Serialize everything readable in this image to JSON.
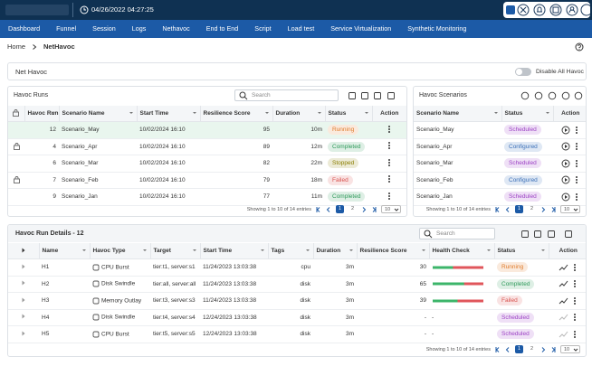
{
  "topbar": {
    "datetime": "04/26/2022 04:27:25"
  },
  "nav": [
    "Dashboard",
    "Funnel",
    "Session",
    "Logs",
    "Nethavoc",
    "End to End",
    "Script",
    "Load test",
    "Service Virtualization",
    "Synthetic Monitoring"
  ],
  "breadcrumb": [
    "Home",
    "NetHavoc"
  ],
  "net_havoc": {
    "title": "Net Havoc",
    "toggle_label": "Disable All Havoc"
  },
  "havoc_runs": {
    "title": "Havoc Runs",
    "search_placeholder": "Search",
    "columns": [
      "Havoc Run",
      "Scenario Name",
      "Start Time",
      "Resilience Score",
      "Duration",
      "Status",
      "Action"
    ],
    "rows": [
      {
        "locked": false,
        "selected": true,
        "havoc_run": "12",
        "scenario_name": "Scenario_May",
        "start_time": "10/02/2024 16:10",
        "resilience_score": "95",
        "duration": "10m",
        "status": "Running",
        "status_color": "#e07b2a"
      },
      {
        "locked": true,
        "selected": false,
        "havoc_run": "4",
        "scenario_name": "Scenario_Apr",
        "start_time": "10/02/2024 16:10",
        "resilience_score": "89",
        "duration": "12m",
        "status": "Completed",
        "status_color": "#2e9a5a"
      },
      {
        "locked": false,
        "selected": false,
        "havoc_run": "6",
        "scenario_name": "Scenario_Mar",
        "start_time": "10/02/2024 16:10",
        "resilience_score": "82",
        "duration": "22m",
        "status": "Stopped",
        "status_color": "#8a7d00"
      },
      {
        "locked": true,
        "selected": false,
        "havoc_run": "7",
        "scenario_name": "Scenario_Feb",
        "start_time": "10/02/2024 16:10",
        "resilience_score": "79",
        "duration": "18m",
        "status": "Failed",
        "status_color": "#d9534f"
      },
      {
        "locked": false,
        "selected": false,
        "havoc_run": "9",
        "scenario_name": "Scenario_Jan",
        "start_time": "10/02/2024 16:10",
        "resilience_score": "77",
        "duration": "11m",
        "status": "Completed",
        "status_color": "#2e9a5a"
      }
    ],
    "footer": "Showing 1 to 10 of 14 entries",
    "pages": [
      "1",
      "2"
    ],
    "page_size": "10"
  },
  "havoc_scenarios": {
    "title": "Havoc Scenarios",
    "columns": [
      "Scenario Name",
      "Status",
      "Action"
    ],
    "rows": [
      {
        "scenario_name": "Scenario_May",
        "status": "Scheduled",
        "status_color": "#9b3fc4"
      },
      {
        "scenario_name": "Scenario_Apr",
        "status": "Configured",
        "status_color": "#3a6fb8"
      },
      {
        "scenario_name": "Scenario_Mar",
        "status": "Scheduled",
        "status_color": "#9b3fc4"
      },
      {
        "scenario_name": "Scenario_Feb",
        "status": "Configured",
        "status_color": "#3a6fb8"
      },
      {
        "scenario_name": "Scenario_Jan",
        "status": "Scheduled",
        "status_color": "#9b3fc4"
      }
    ],
    "footer": "Showing 1 to 10 of 14 entries",
    "pages": [
      "1",
      "2"
    ],
    "page_size": "10"
  },
  "havoc_run_details": {
    "title": "Havoc Run Details - 12",
    "search_placeholder": "Search",
    "columns": [
      "Name",
      "Havoc Type",
      "Target",
      "Start Time",
      "Tags",
      "Duration",
      "Resilience Score",
      "Health Check",
      "Status",
      "Action"
    ],
    "rows": [
      {
        "name": "H1",
        "havoc_type": "CPU Burst",
        "target": "tier:t1, server:s1",
        "start_time": "11/24/2023 13:03:38",
        "tags": "cpu",
        "duration": "3m",
        "resilience_score": "30",
        "health_check": 40,
        "status": "Running",
        "status_color": "#e07b2a"
      },
      {
        "name": "H2",
        "havoc_type": "Disk Swindle",
        "target": "tier:all, server:all",
        "start_time": "11/24/2023 13:03:38",
        "tags": "disk",
        "duration": "3m",
        "resilience_score": "65",
        "health_check": 62,
        "status": "Completed",
        "status_color": "#2e9a5a"
      },
      {
        "name": "H3",
        "havoc_type": "Memory Outlay",
        "target": "tier:t3, server:s3",
        "start_time": "11/24/2023 13:03:38",
        "tags": "disk",
        "duration": "3m",
        "resilience_score": "39",
        "health_check": 49,
        "status": "Failed",
        "status_color": "#d9534f"
      },
      {
        "name": "H4",
        "havoc_type": "Disk Swindle",
        "target": "tier:t4, server:s4",
        "start_time": "12/24/2023 13:03:38",
        "tags": "disk",
        "duration": "3m",
        "resilience_score": "-",
        "health_check": "-",
        "status": "Scheduled",
        "status_color": "#9b3fc4"
      },
      {
        "name": "H5",
        "havoc_type": "CPU Burst",
        "target": "tier:t5, server:s5",
        "start_time": "12/24/2023 13:03:38",
        "tags": "disk",
        "duration": "3m",
        "resilience_score": "-",
        "health_check": "-",
        "status": "Scheduled",
        "status_color": "#9b3fc4"
      }
    ],
    "footer": "Showing 1 to 10 of 14 entries",
    "pages": [
      "1",
      "2"
    ],
    "page_size": "10"
  }
}
